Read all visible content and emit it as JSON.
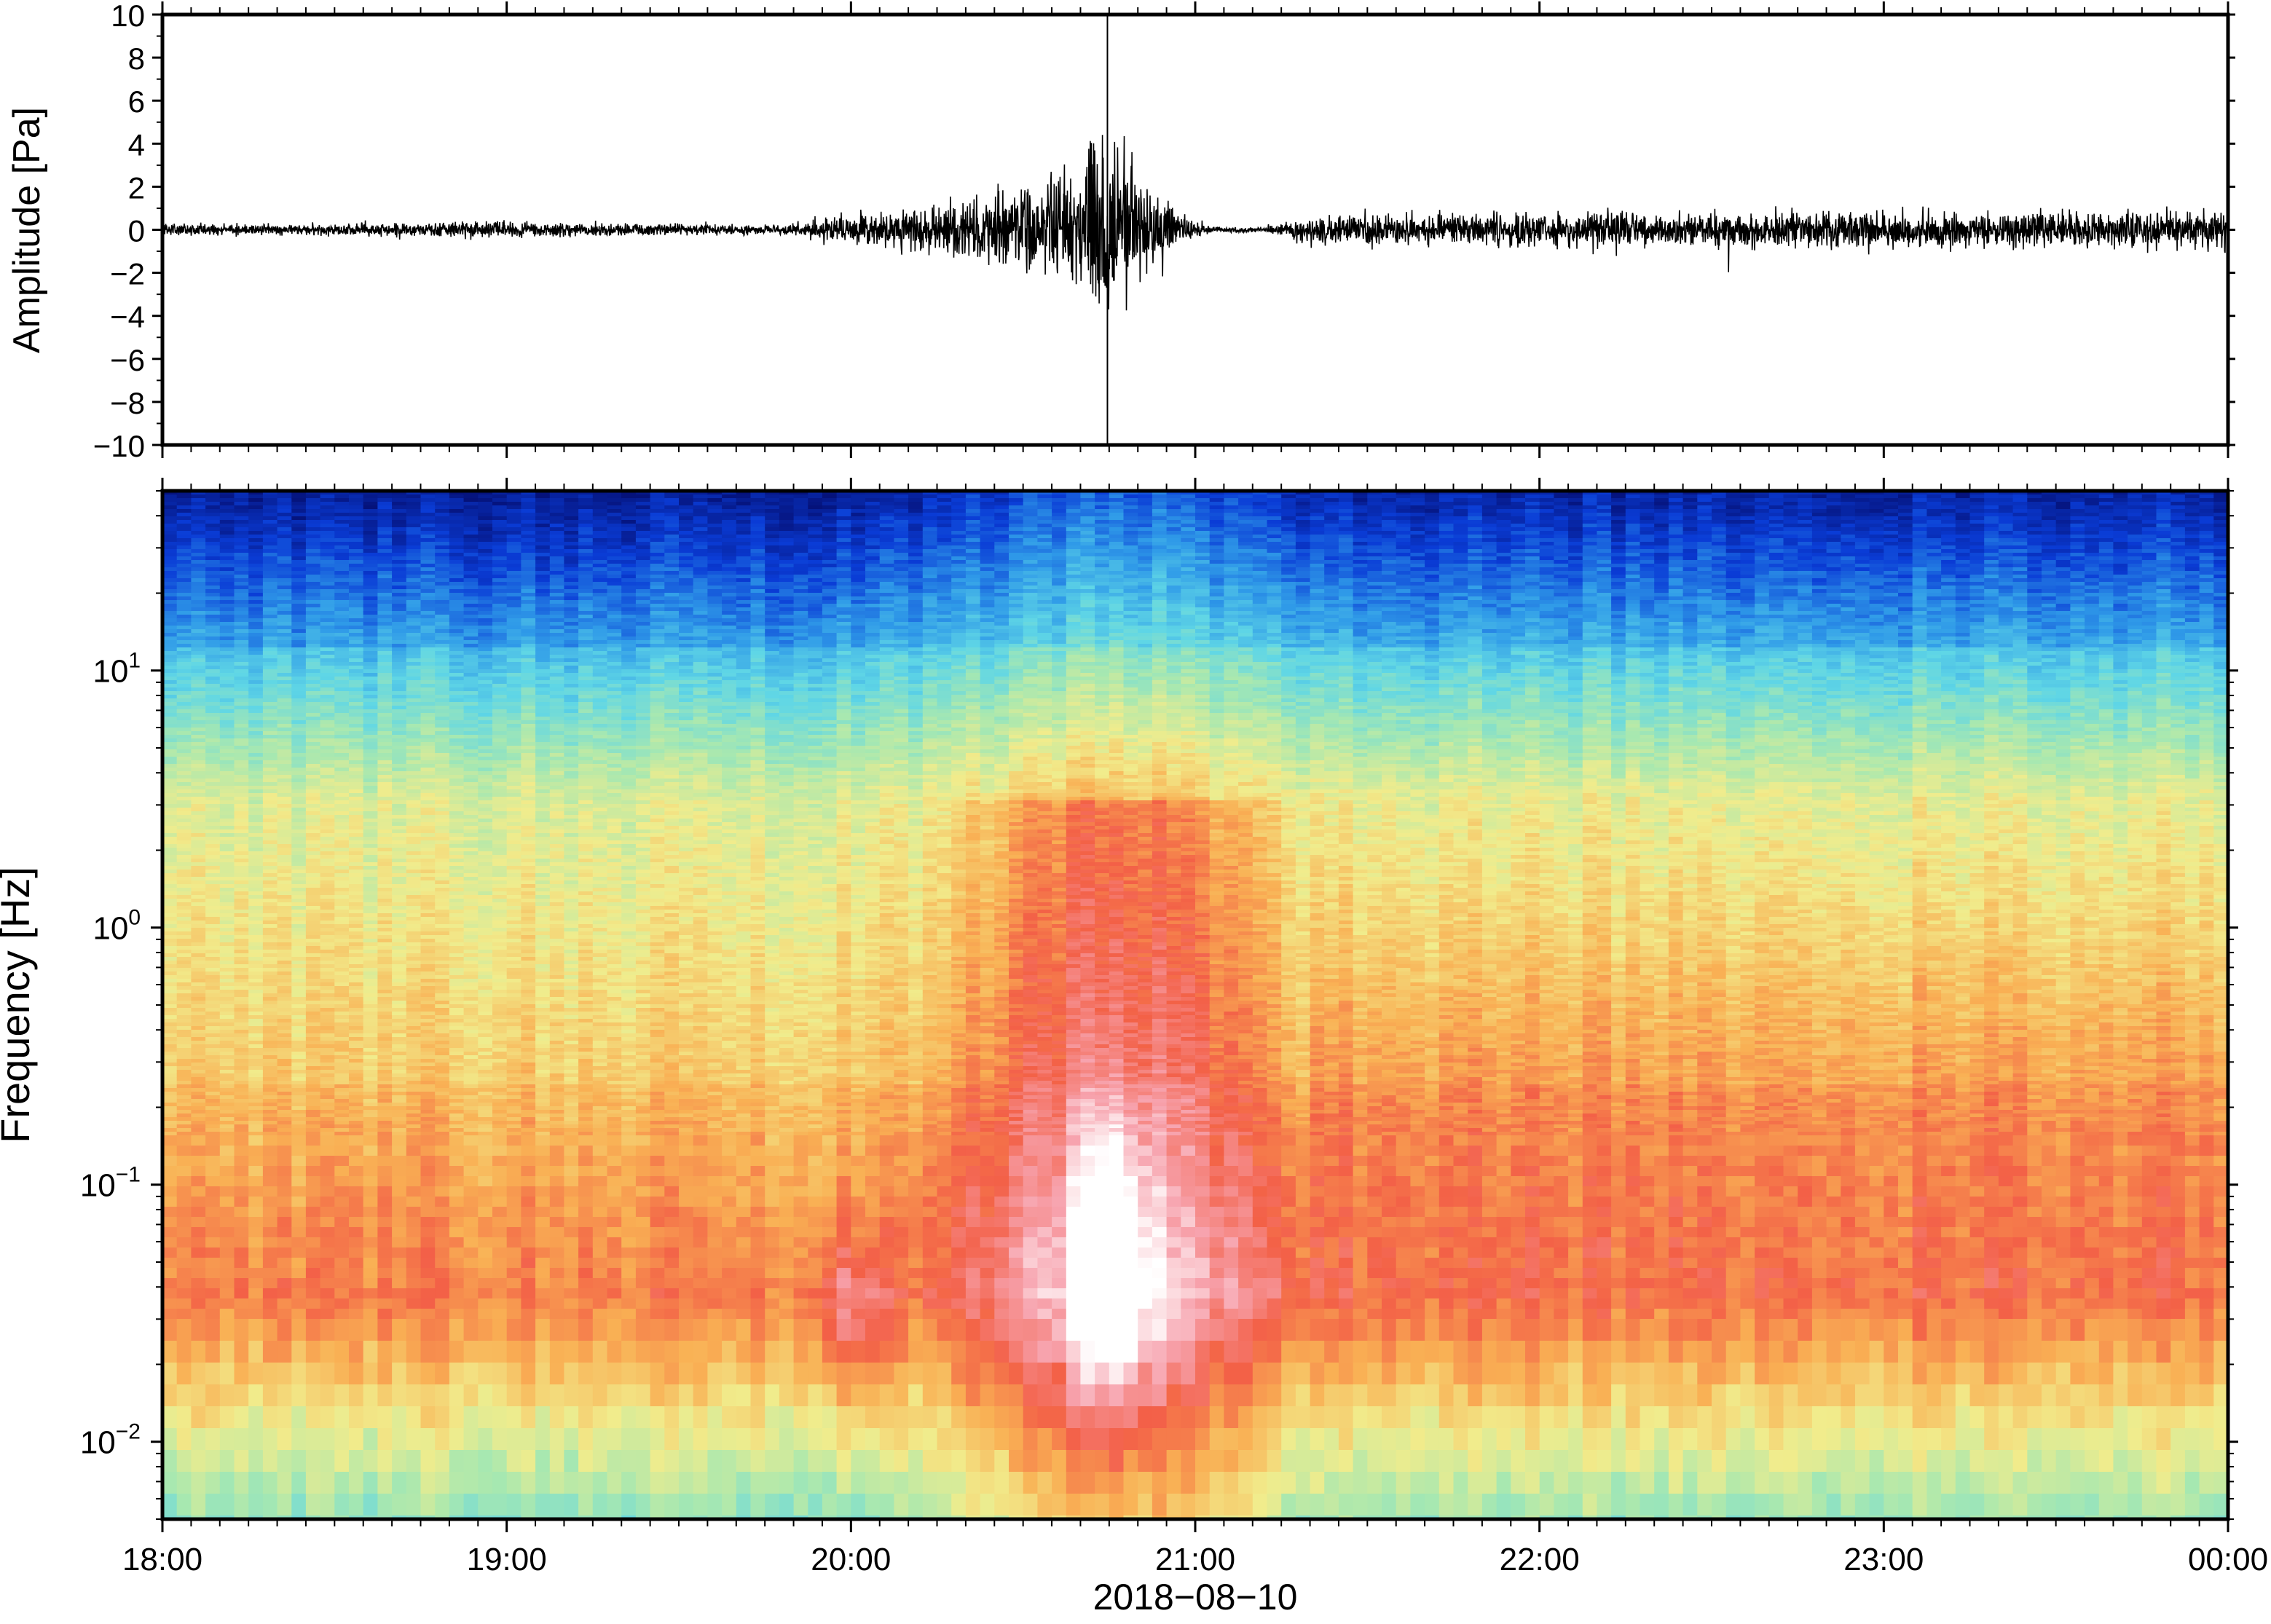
{
  "chart_data": [
    {
      "type": "line",
      "panel": "waveform",
      "ylabel": "Amplitude [Pa]",
      "ylim": [
        -10,
        10
      ],
      "y_ticks": [
        10,
        8,
        6,
        4,
        2,
        0,
        -2,
        -4,
        -6,
        -8,
        -10
      ],
      "y_tick_labels": [
        "10",
        "8",
        "6",
        "4",
        "2",
        "0",
        "−2",
        "−4",
        "−6",
        "−8",
        "−10"
      ],
      "x_range_hours": [
        18,
        24
      ],
      "envelope": {
        "hours": [
          18.0,
          18.5,
          19.0,
          19.5,
          19.8,
          19.95,
          20.1,
          20.25,
          20.4,
          20.55,
          20.65,
          20.75,
          20.85,
          20.95,
          21.05,
          21.2,
          21.35,
          21.5,
          22.0,
          22.5,
          23.0,
          23.5,
          24.0
        ],
        "amplitude_pa": [
          0.6,
          0.6,
          0.8,
          0.6,
          0.5,
          1.5,
          1.8,
          2.6,
          4.0,
          4.5,
          6.0,
          9.8,
          5.0,
          2.0,
          0.3,
          0.3,
          1.6,
          1.6,
          1.8,
          1.8,
          1.9,
          1.9,
          1.9
        ]
      },
      "grid": false
    },
    {
      "type": "heatmap",
      "panel": "spectrogram",
      "ylabel": "Frequency [Hz]",
      "xlabel": "2018−08−10",
      "y_scale": "log",
      "ylim_hz": [
        0.005,
        50
      ],
      "y_tick_values": [
        10,
        1,
        0.1,
        0.01
      ],
      "y_tick_labels": [
        {
          "base": "10",
          "exp": "1"
        },
        {
          "base": "10",
          "exp": "0"
        },
        {
          "base": "10",
          "exp": "−1"
        },
        {
          "base": "10",
          "exp": "−2"
        }
      ],
      "x_tick_labels": [
        "18:00",
        "19:00",
        "20:00",
        "21:00",
        "22:00",
        "23:00",
        "00:00"
      ],
      "x_tick_hours": [
        18,
        19,
        20,
        21,
        22,
        23,
        24
      ],
      "colormap": [
        "#05127a",
        "#0a3cd6",
        "#2f9ae8",
        "#5fd6e6",
        "#a8e8b0",
        "#f1ec8c",
        "#f9b054",
        "#f36047",
        "#f7a3ae",
        "#ffffff"
      ],
      "event_window_hours": [
        20.25,
        21.3
      ],
      "event_peak": {
        "hour": 20.75,
        "frequency_hz": 0.05
      },
      "grid": false
    }
  ]
}
